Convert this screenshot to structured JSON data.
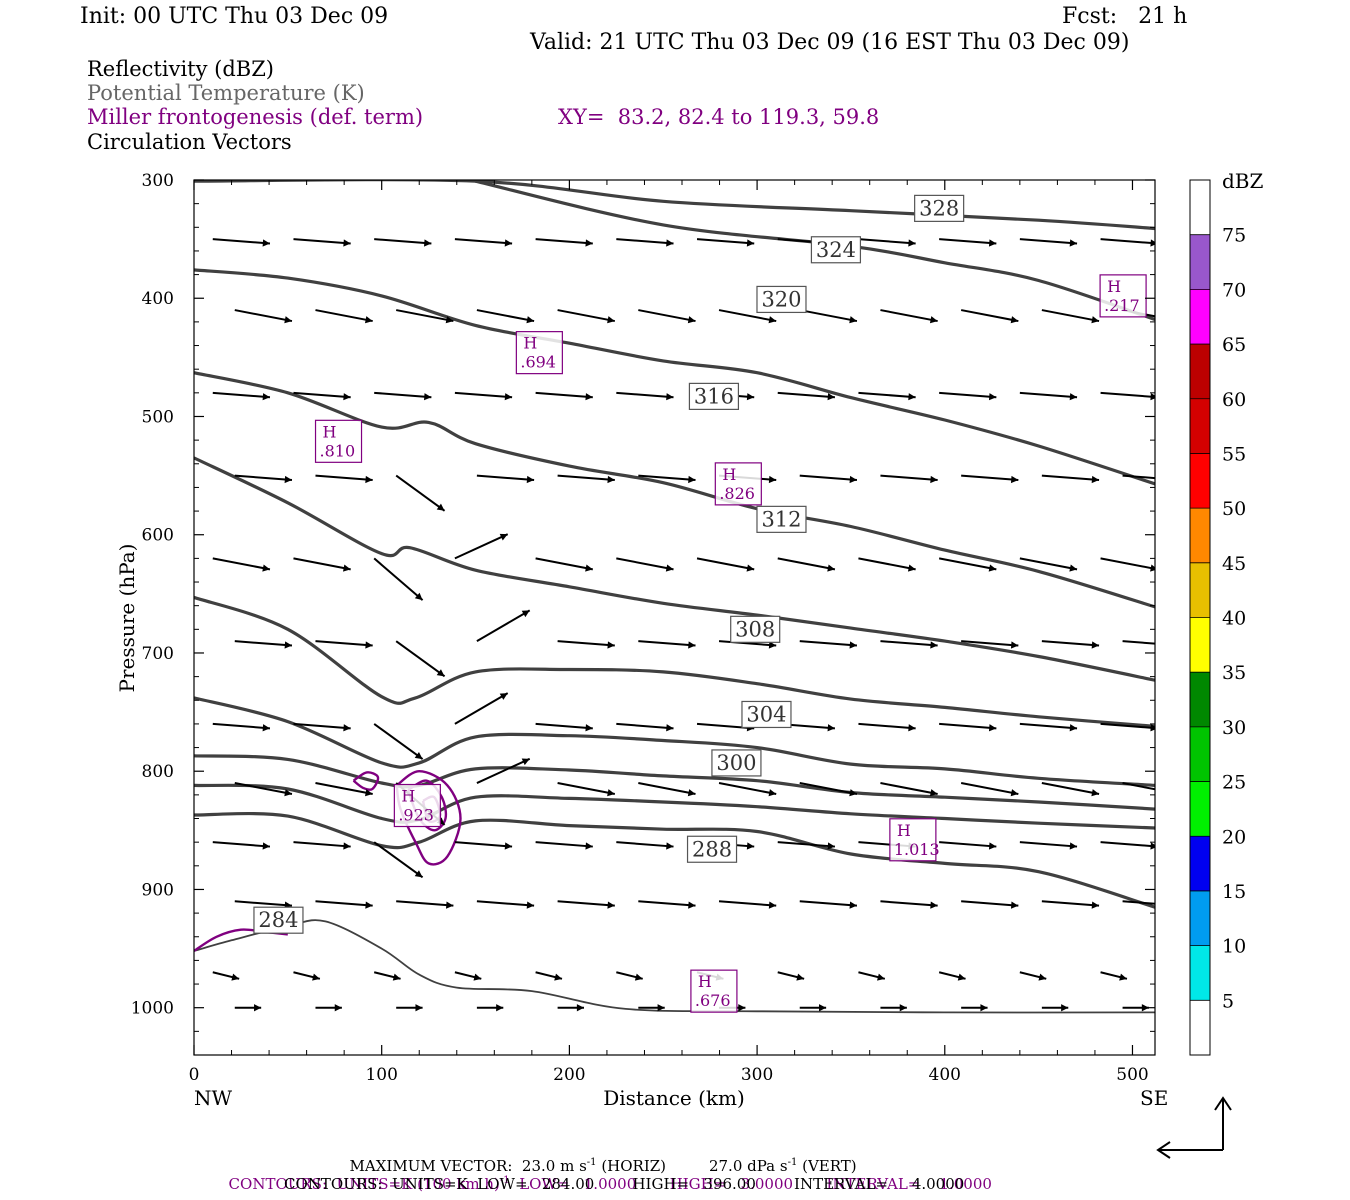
{
  "header": {
    "init": "Init: 00 UTC Thu 03 Dec 09",
    "fcst": "Fcst:   21 h",
    "valid": "Valid: 21 UTC Thu 03 Dec 09 (16 EST Thu 03 Dec 09)",
    "field1": "Reflectivity (dBZ)",
    "field2": "Potential Temperature (K)",
    "field3": "Miller frontogenesis (def. term)",
    "xy": "XY=  83.2, 82.4 to 119.3, 59.8",
    "field4": "Circulation Vectors"
  },
  "colors": {
    "theta": "#404040",
    "fronto": "#800080",
    "vector": "#000000"
  },
  "chart_data": {
    "type": "cross-section",
    "xlabel": "Distance (km)",
    "ylabel": "Pressure (hPa)",
    "x_ticks": [
      0,
      100,
      200,
      300,
      400,
      500
    ],
    "y_ticks": [
      300,
      400,
      500,
      600,
      700,
      800,
      900,
      1000
    ],
    "xlim": [
      0,
      512
    ],
    "ylim": [
      1040,
      300
    ],
    "x_end_labels": {
      "left": "NW",
      "right": "SE"
    },
    "theta_contours": [
      {
        "label": "328",
        "label_at": [
          397,
          324
        ],
        "points": [
          [
            0,
            301
          ],
          [
            150,
            301
          ],
          [
            250,
            318
          ],
          [
            350,
            326
          ],
          [
            450,
            334
          ],
          [
            512,
            341
          ]
        ]
      },
      {
        "label": "324",
        "label_at": [
          342,
          359
        ],
        "points": [
          [
            150,
            301
          ],
          [
            250,
            338
          ],
          [
            350,
            356
          ],
          [
            400,
            370
          ],
          [
            450,
            385
          ],
          [
            512,
            418
          ]
        ]
      },
      {
        "label": "320",
        "label_at": [
          313,
          401
        ],
        "points": [
          [
            0,
            376
          ],
          [
            50,
            383
          ],
          [
            100,
            398
          ],
          [
            150,
            423
          ],
          [
            200,
            438
          ],
          [
            250,
            453
          ],
          [
            300,
            463
          ],
          [
            350,
            484
          ],
          [
            400,
            503
          ],
          [
            450,
            525
          ],
          [
            512,
            557
          ]
        ]
      },
      {
        "label": "316",
        "label_at": [
          277,
          483
        ],
        "points": [
          [
            0,
            463
          ],
          [
            50,
            480
          ],
          [
            100,
            509
          ],
          [
            125,
            505
          ],
          [
            150,
            523
          ],
          [
            200,
            542
          ],
          [
            250,
            556
          ],
          [
            300,
            578
          ],
          [
            350,
            593
          ],
          [
            400,
            613
          ],
          [
            450,
            631
          ],
          [
            512,
            661
          ]
        ]
      },
      {
        "label": "312",
        "label_at": [
          313,
          587
        ],
        "points": [
          [
            0,
            535
          ],
          [
            50,
            573
          ],
          [
            100,
            616
          ],
          [
            115,
            611
          ],
          [
            150,
            630
          ],
          [
            200,
            644
          ],
          [
            250,
            658
          ],
          [
            300,
            668
          ],
          [
            350,
            679
          ],
          [
            400,
            690
          ],
          [
            450,
            703
          ],
          [
            512,
            723
          ]
        ]
      },
      {
        "label": "308",
        "label_at": [
          299,
          680
        ],
        "points": [
          [
            0,
            653
          ],
          [
            50,
            680
          ],
          [
            100,
            737
          ],
          [
            118,
            738
          ],
          [
            150,
            716
          ],
          [
            200,
            714
          ],
          [
            250,
            716
          ],
          [
            300,
            726
          ],
          [
            350,
            739
          ],
          [
            400,
            746
          ],
          [
            450,
            754
          ],
          [
            512,
            762
          ]
        ]
      },
      {
        "label": "304",
        "label_at": [
          305,
          752
        ],
        "points": [
          [
            0,
            738
          ],
          [
            50,
            758
          ],
          [
            100,
            793
          ],
          [
            120,
            793
          ],
          [
            150,
            771
          ],
          [
            200,
            770
          ],
          [
            250,
            774
          ],
          [
            300,
            780
          ],
          [
            350,
            794
          ],
          [
            400,
            798
          ],
          [
            450,
            806
          ],
          [
            512,
            812
          ]
        ]
      },
      {
        "label": "300",
        "label_at": [
          289,
          793
        ],
        "points": [
          [
            0,
            787
          ],
          [
            50,
            790
          ],
          [
            100,
            810
          ],
          [
            120,
            812
          ],
          [
            150,
            798
          ],
          [
            200,
            799
          ],
          [
            250,
            804
          ],
          [
            300,
            808
          ],
          [
            350,
            818
          ],
          [
            400,
            822
          ],
          [
            450,
            826
          ],
          [
            512,
            832
          ]
        ]
      },
      {
        "label": "",
        "label_at": null,
        "points": [
          [
            0,
            812
          ],
          [
            50,
            815
          ],
          [
            100,
            840
          ],
          [
            120,
            841
          ],
          [
            150,
            822
          ],
          [
            200,
            823
          ],
          [
            250,
            826
          ],
          [
            300,
            830
          ],
          [
            350,
            836
          ],
          [
            400,
            840
          ],
          [
            450,
            844
          ],
          [
            512,
            848
          ]
        ]
      },
      {
        "label": "288",
        "label_at": [
          276,
          866
        ],
        "points": [
          [
            0,
            837
          ],
          [
            50,
            838
          ],
          [
            100,
            863
          ],
          [
            120,
            860
          ],
          [
            150,
            842
          ],
          [
            200,
            846
          ],
          [
            250,
            849
          ],
          [
            300,
            851
          ],
          [
            350,
            870
          ],
          [
            400,
            878
          ],
          [
            450,
            885
          ],
          [
            512,
            915
          ]
        ]
      },
      {
        "label": "284",
        "label_at": [
          45,
          926
        ],
        "points": [
          [
            0,
            952
          ],
          [
            20,
            943
          ],
          [
            50,
            931
          ],
          [
            70,
            927
          ],
          [
            100,
            950
          ],
          [
            120,
            972
          ],
          [
            140,
            983
          ],
          [
            180,
            986
          ],
          [
            230,
            1001
          ],
          [
            300,
            1003
          ],
          [
            400,
            1004
          ],
          [
            512,
            1004
          ]
        ]
      }
    ],
    "fronto_maxima": [
      {
        "label": "H",
        "value": ".217",
        "at": [
          495,
          398
        ]
      },
      {
        "label": "H",
        "value": ".694",
        "at": [
          184,
          446
        ]
      },
      {
        "label": "H",
        "value": ".810",
        "at": [
          77,
          521
        ]
      },
      {
        "label": "H",
        "value": ".826",
        "at": [
          290,
          557
        ]
      },
      {
        "label": "H",
        "value": ".923",
        "at": [
          119,
          829
        ]
      },
      {
        "label": "H",
        "value": "1.013",
        "at": [
          383,
          858
        ]
      },
      {
        "label": "H",
        "value": ".676",
        "at": [
          277,
          986
        ]
      }
    ],
    "colorbar": {
      "title": "dBZ",
      "levels": [
        5,
        10,
        15,
        20,
        25,
        30,
        35,
        40,
        45,
        50,
        55,
        60,
        65,
        70,
        75
      ],
      "colors": [
        "#ffffff",
        "#00e8e8",
        "#009cf0",
        "#0000f0",
        "#00f000",
        "#00c400",
        "#008800",
        "#ffff00",
        "#e8c000",
        "#ff8800",
        "#ff0000",
        "#d40000",
        "#bc0000",
        "#ff00ff",
        "#9957cc",
        "#ffffff"
      ]
    }
  },
  "footer": {
    "line1a": "MAXIMUM VECTOR:  23.0 m s",
    "line1b": "(HORIZ)",
    "line1c": "27.0 dPa s",
    "line1d": "(VERT)",
    "line2": "CONTOURS:  UNITS=K (100 km h)",
    "line2b": "LOW=   1.0000       HIGH=   3.0000       INTERVAL=    1.0000",
    "line3": "CONTOURS:  UNITS=K  LOW=   284.00        HIGH=   396.00        INTERVAL=     4.0000",
    "exp": "-1"
  }
}
